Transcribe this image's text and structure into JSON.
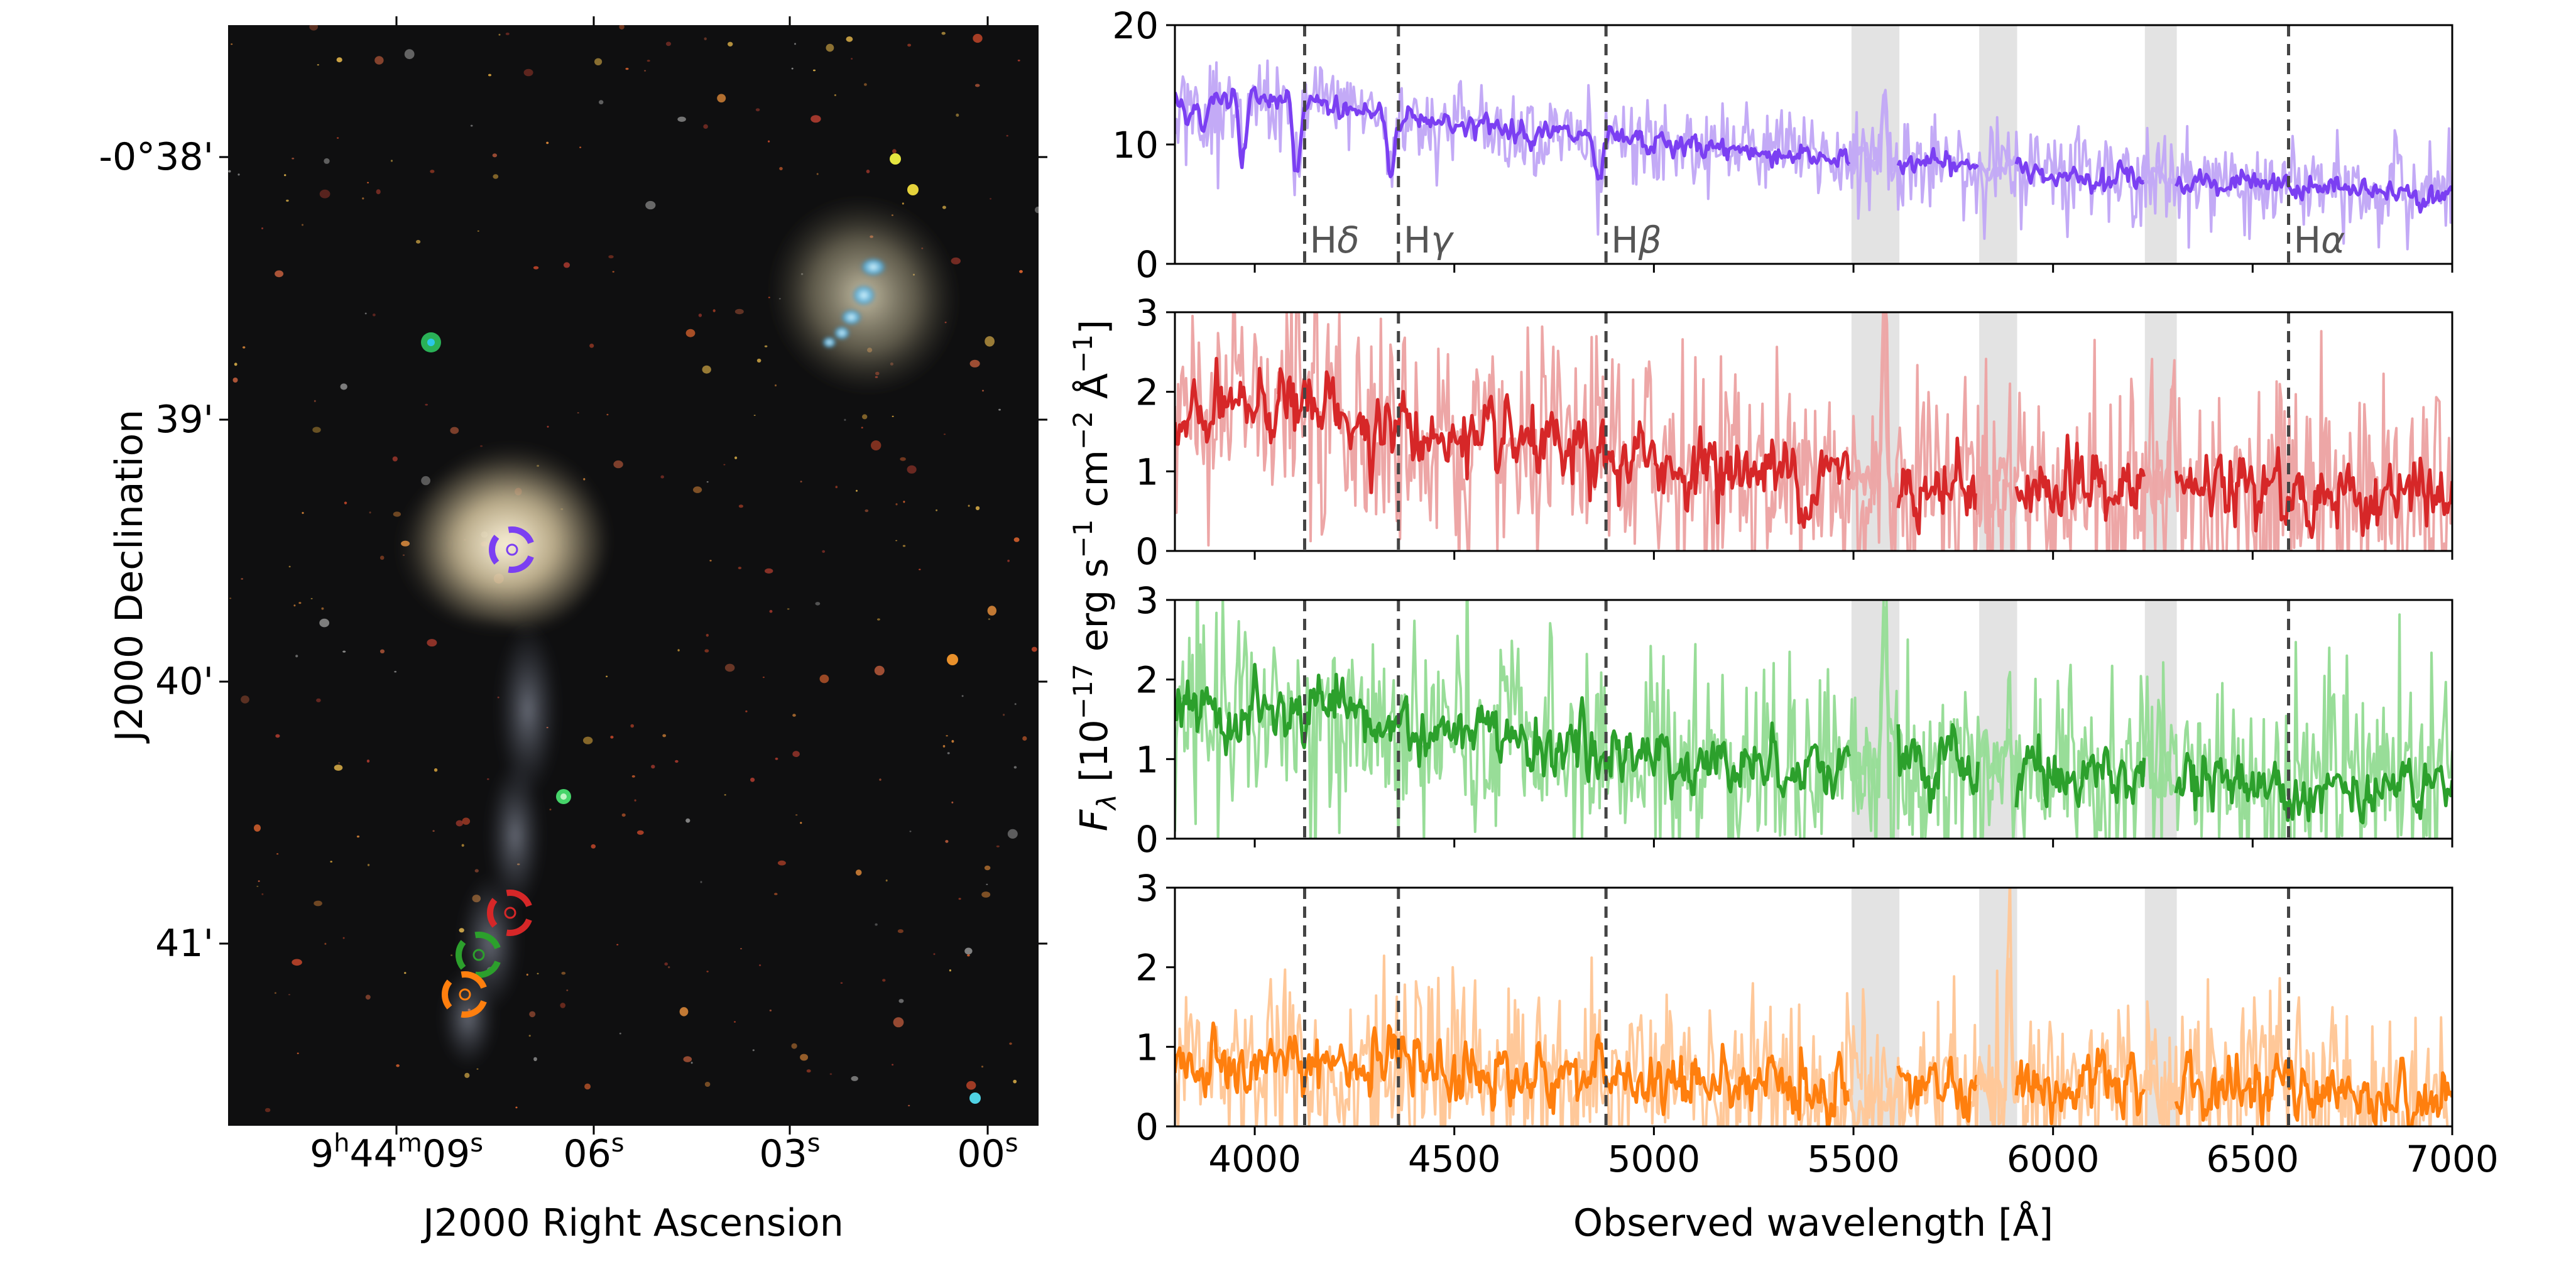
{
  "image_panel": {
    "xlabel": "J2000 Right Ascension",
    "ylabel": "J2000 Declination",
    "ra_ticks": [
      {
        "main": "9",
        "sup1": "h",
        "mid": "44",
        "sup2": "m",
        "sec": "09",
        "sup3": "s"
      },
      {
        "main": "06",
        "sup": "s"
      },
      {
        "main": "03",
        "sup": "s"
      },
      {
        "main": "00",
        "sup": "s"
      }
    ],
    "dec_ticks": [
      "-0°38'",
      "39'",
      "40'",
      "41'"
    ],
    "markers": [
      {
        "name": "purple",
        "color": "#7b3ff2"
      },
      {
        "name": "red",
        "color": "#d62728"
      },
      {
        "name": "green",
        "color": "#2ca02c"
      },
      {
        "name": "orange",
        "color": "#ff7f0e"
      }
    ]
  },
  "spectra": {
    "xlabel": "Observed wavelength [Å]",
    "ylabel_parts": {
      "f": "F",
      "sub": "λ",
      "a": " [10",
      "e1": "−17",
      "b": " erg s",
      "e2": "−1",
      "c": " cm",
      "e3": "−2",
      "d": " Å",
      "e4": "−1",
      "e": "]"
    },
    "line_markers": [
      {
        "label": "Hδ",
        "base": "H",
        "greek": "δ",
        "wavelength": 4125
      },
      {
        "label": "Hγ",
        "base": "H",
        "greek": "γ",
        "wavelength": 4360
      },
      {
        "label": "Hβ",
        "base": "H",
        "greek": "β",
        "wavelength": 4880
      },
      {
        "label": "Hα",
        "base": "H",
        "greek": "α",
        "wavelength": 6590
      }
    ],
    "masked_regions": [
      [
        5495,
        5615
      ],
      [
        5815,
        5910
      ],
      [
        6230,
        6310
      ]
    ],
    "grey_color": "#e3e3e3"
  },
  "chart_data": {
    "type": "line",
    "xlabel": "Observed wavelength [Å]",
    "xlim": [
      3800,
      7000
    ],
    "xticks": [
      4000,
      4500,
      5000,
      5500,
      6000,
      6500,
      7000
    ],
    "panels": [
      {
        "color": "#7b3ff2",
        "light": "#c3aaf6",
        "ylim": [
          0,
          20
        ],
        "yticks": [
          0,
          10,
          20
        ],
        "continuum": [
          [
            3800,
            14.2
          ],
          [
            4100,
            13.6
          ],
          [
            4500,
            11.8
          ],
          [
            5000,
            10.0
          ],
          [
            5500,
            8.8
          ],
          [
            6000,
            7.7
          ],
          [
            6500,
            6.6
          ],
          [
            7000,
            5.8
          ]
        ],
        "noise": 0.7,
        "raw_noise": 1.9,
        "absorption": [
          [
            3870,
            3.5
          ],
          [
            3970,
            5.5
          ],
          [
            4105,
            6.5
          ],
          [
            4340,
            5.0
          ],
          [
            4862,
            4.5
          ],
          [
            3830,
            2.0
          ]
        ],
        "emission": [
          [
            5577,
            6.0
          ]
        ]
      },
      {
        "color": "#d62728",
        "light": "#eda6a6",
        "ylim": [
          0,
          3
        ],
        "yticks": [
          0,
          1,
          2,
          3
        ],
        "continuum": [
          [
            3800,
            1.5
          ],
          [
            4000,
            1.9
          ],
          [
            4100,
            1.85
          ],
          [
            4500,
            1.35
          ],
          [
            5000,
            1.1
          ],
          [
            5500,
            0.9
          ],
          [
            6000,
            0.8
          ],
          [
            6500,
            0.75
          ],
          [
            7000,
            0.65
          ]
        ],
        "noise": 0.32,
        "raw_noise": 0.75,
        "absorption": [],
        "emission": [
          [
            5577,
            1.9
          ],
          [
            6300,
            1.3
          ]
        ]
      },
      {
        "color": "#2ca02c",
        "light": "#98dd98",
        "ylim": [
          0,
          3
        ],
        "yticks": [
          0,
          1,
          2,
          3
        ],
        "continuum": [
          [
            3800,
            1.55
          ],
          [
            4100,
            1.55
          ],
          [
            4500,
            1.3
          ],
          [
            5000,
            1.0
          ],
          [
            5500,
            0.92
          ],
          [
            6000,
            0.85
          ],
          [
            6500,
            0.72
          ],
          [
            7000,
            0.65
          ]
        ],
        "noise": 0.28,
        "raw_noise": 0.65,
        "absorption": [],
        "emission": [
          [
            5577,
            2.3
          ],
          [
            5890,
            0.5
          ]
        ]
      },
      {
        "color": "#ff7f0e",
        "light": "#ffc899",
        "ylim": [
          0,
          3
        ],
        "yticks": [
          0,
          1,
          2,
          3
        ],
        "continuum": [
          [
            3800,
            0.7
          ],
          [
            4100,
            0.8
          ],
          [
            4500,
            0.7
          ],
          [
            5000,
            0.55
          ],
          [
            5500,
            0.45
          ],
          [
            6000,
            0.45
          ],
          [
            6500,
            0.5
          ],
          [
            7000,
            0.3
          ]
        ],
        "noise": 0.28,
        "raw_noise": 0.55,
        "absorption": [],
        "emission": [
          [
            5890,
            1.6
          ],
          [
            6560,
            0.6
          ]
        ]
      }
    ]
  }
}
